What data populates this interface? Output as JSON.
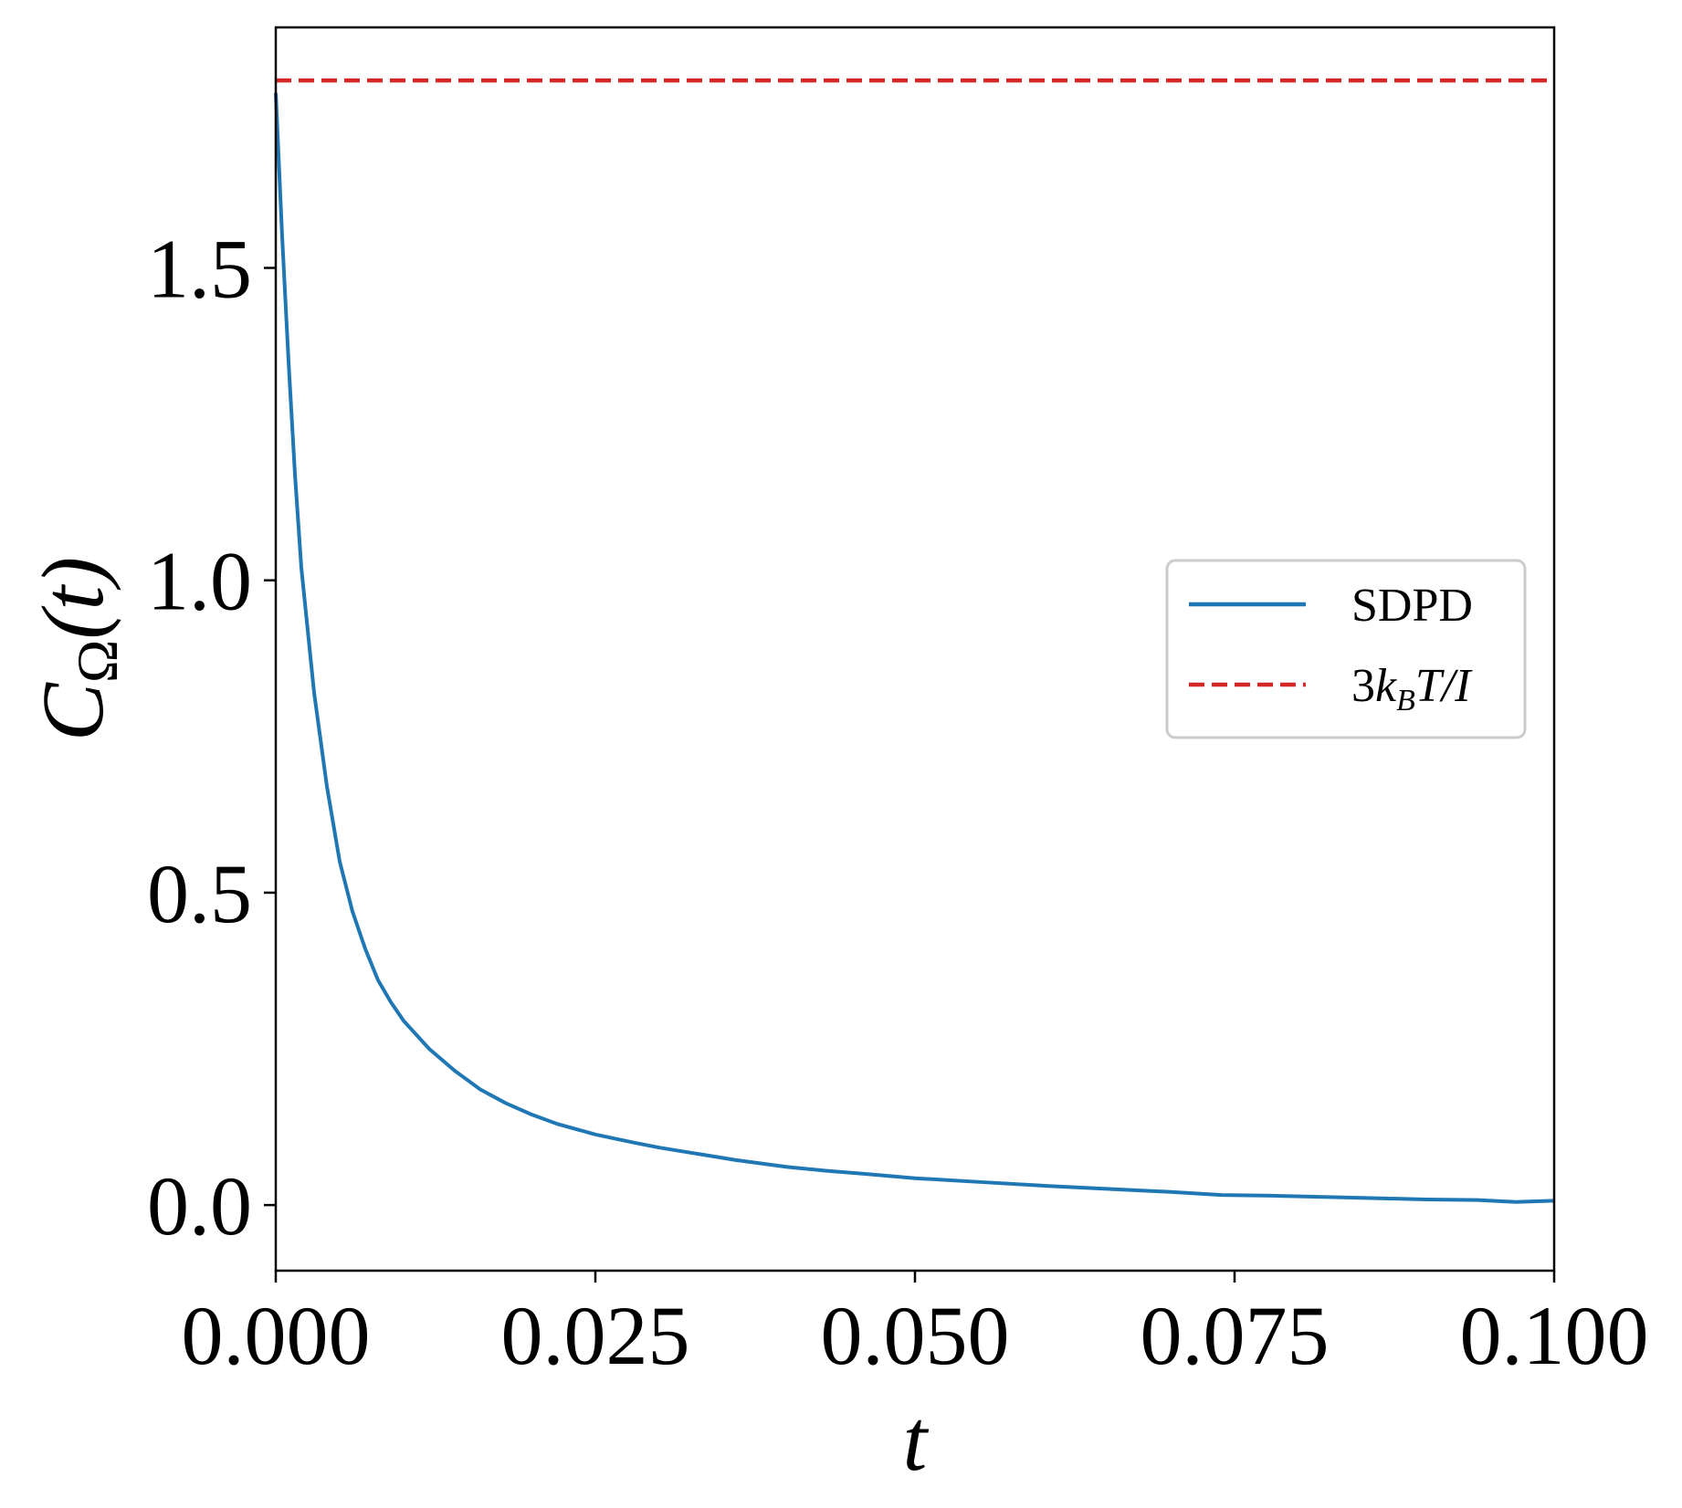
{
  "chart_data": {
    "type": "line",
    "title": "",
    "xlabel": "t",
    "ylabel": "C_Ω(t)",
    "xlim": [
      0.0,
      0.1
    ],
    "ylim": [
      -0.105,
      1.885
    ],
    "xticks": [
      0.0,
      0.025,
      0.05,
      0.075,
      0.1
    ],
    "xtick_labels": [
      "0.000",
      "0.025",
      "0.050",
      "0.075",
      "0.100"
    ],
    "yticks": [
      0.0,
      0.5,
      1.0,
      1.5
    ],
    "ytick_labels": [
      "0.0",
      "0.5",
      "1.0",
      "1.5"
    ],
    "grid": false,
    "legend_position": "center-right",
    "series": [
      {
        "name": "SDPD",
        "style": "solid",
        "color": "#1f77b4",
        "x": [
          0.0,
          0.0005,
          0.001,
          0.0015,
          0.002,
          0.003,
          0.004,
          0.005,
          0.006,
          0.007,
          0.008,
          0.009,
          0.01,
          0.012,
          0.014,
          0.016,
          0.018,
          0.02,
          0.022,
          0.025,
          0.028,
          0.03,
          0.033,
          0.036,
          0.04,
          0.043,
          0.046,
          0.05,
          0.055,
          0.06,
          0.065,
          0.07,
          0.074,
          0.078,
          0.082,
          0.086,
          0.09,
          0.094,
          0.097,
          0.1
        ],
        "y": [
          1.78,
          1.55,
          1.35,
          1.17,
          1.02,
          0.82,
          0.67,
          0.55,
          0.47,
          0.41,
          0.36,
          0.325,
          0.295,
          0.25,
          0.215,
          0.185,
          0.163,
          0.145,
          0.13,
          0.113,
          0.1,
          0.092,
          0.082,
          0.072,
          0.061,
          0.055,
          0.05,
          0.043,
          0.037,
          0.031,
          0.026,
          0.021,
          0.016,
          0.015,
          0.013,
          0.011,
          0.009,
          0.008,
          0.005,
          0.007
        ]
      },
      {
        "name": "3k_BT/I",
        "style": "dashed",
        "color": "#d62728",
        "x": [
          0.0,
          0.1
        ],
        "y": [
          1.8,
          1.8
        ]
      }
    ]
  },
  "labels": {
    "xlabel": "t",
    "ylabel_main": "C",
    "ylabel_sub": "Ω",
    "ylabel_paren": "(t)",
    "legend_sdpd": "SDPD",
    "legend_ref_3": "3",
    "legend_ref_k": "k",
    "legend_ref_sub": "B",
    "legend_ref_rest": "T/I"
  }
}
